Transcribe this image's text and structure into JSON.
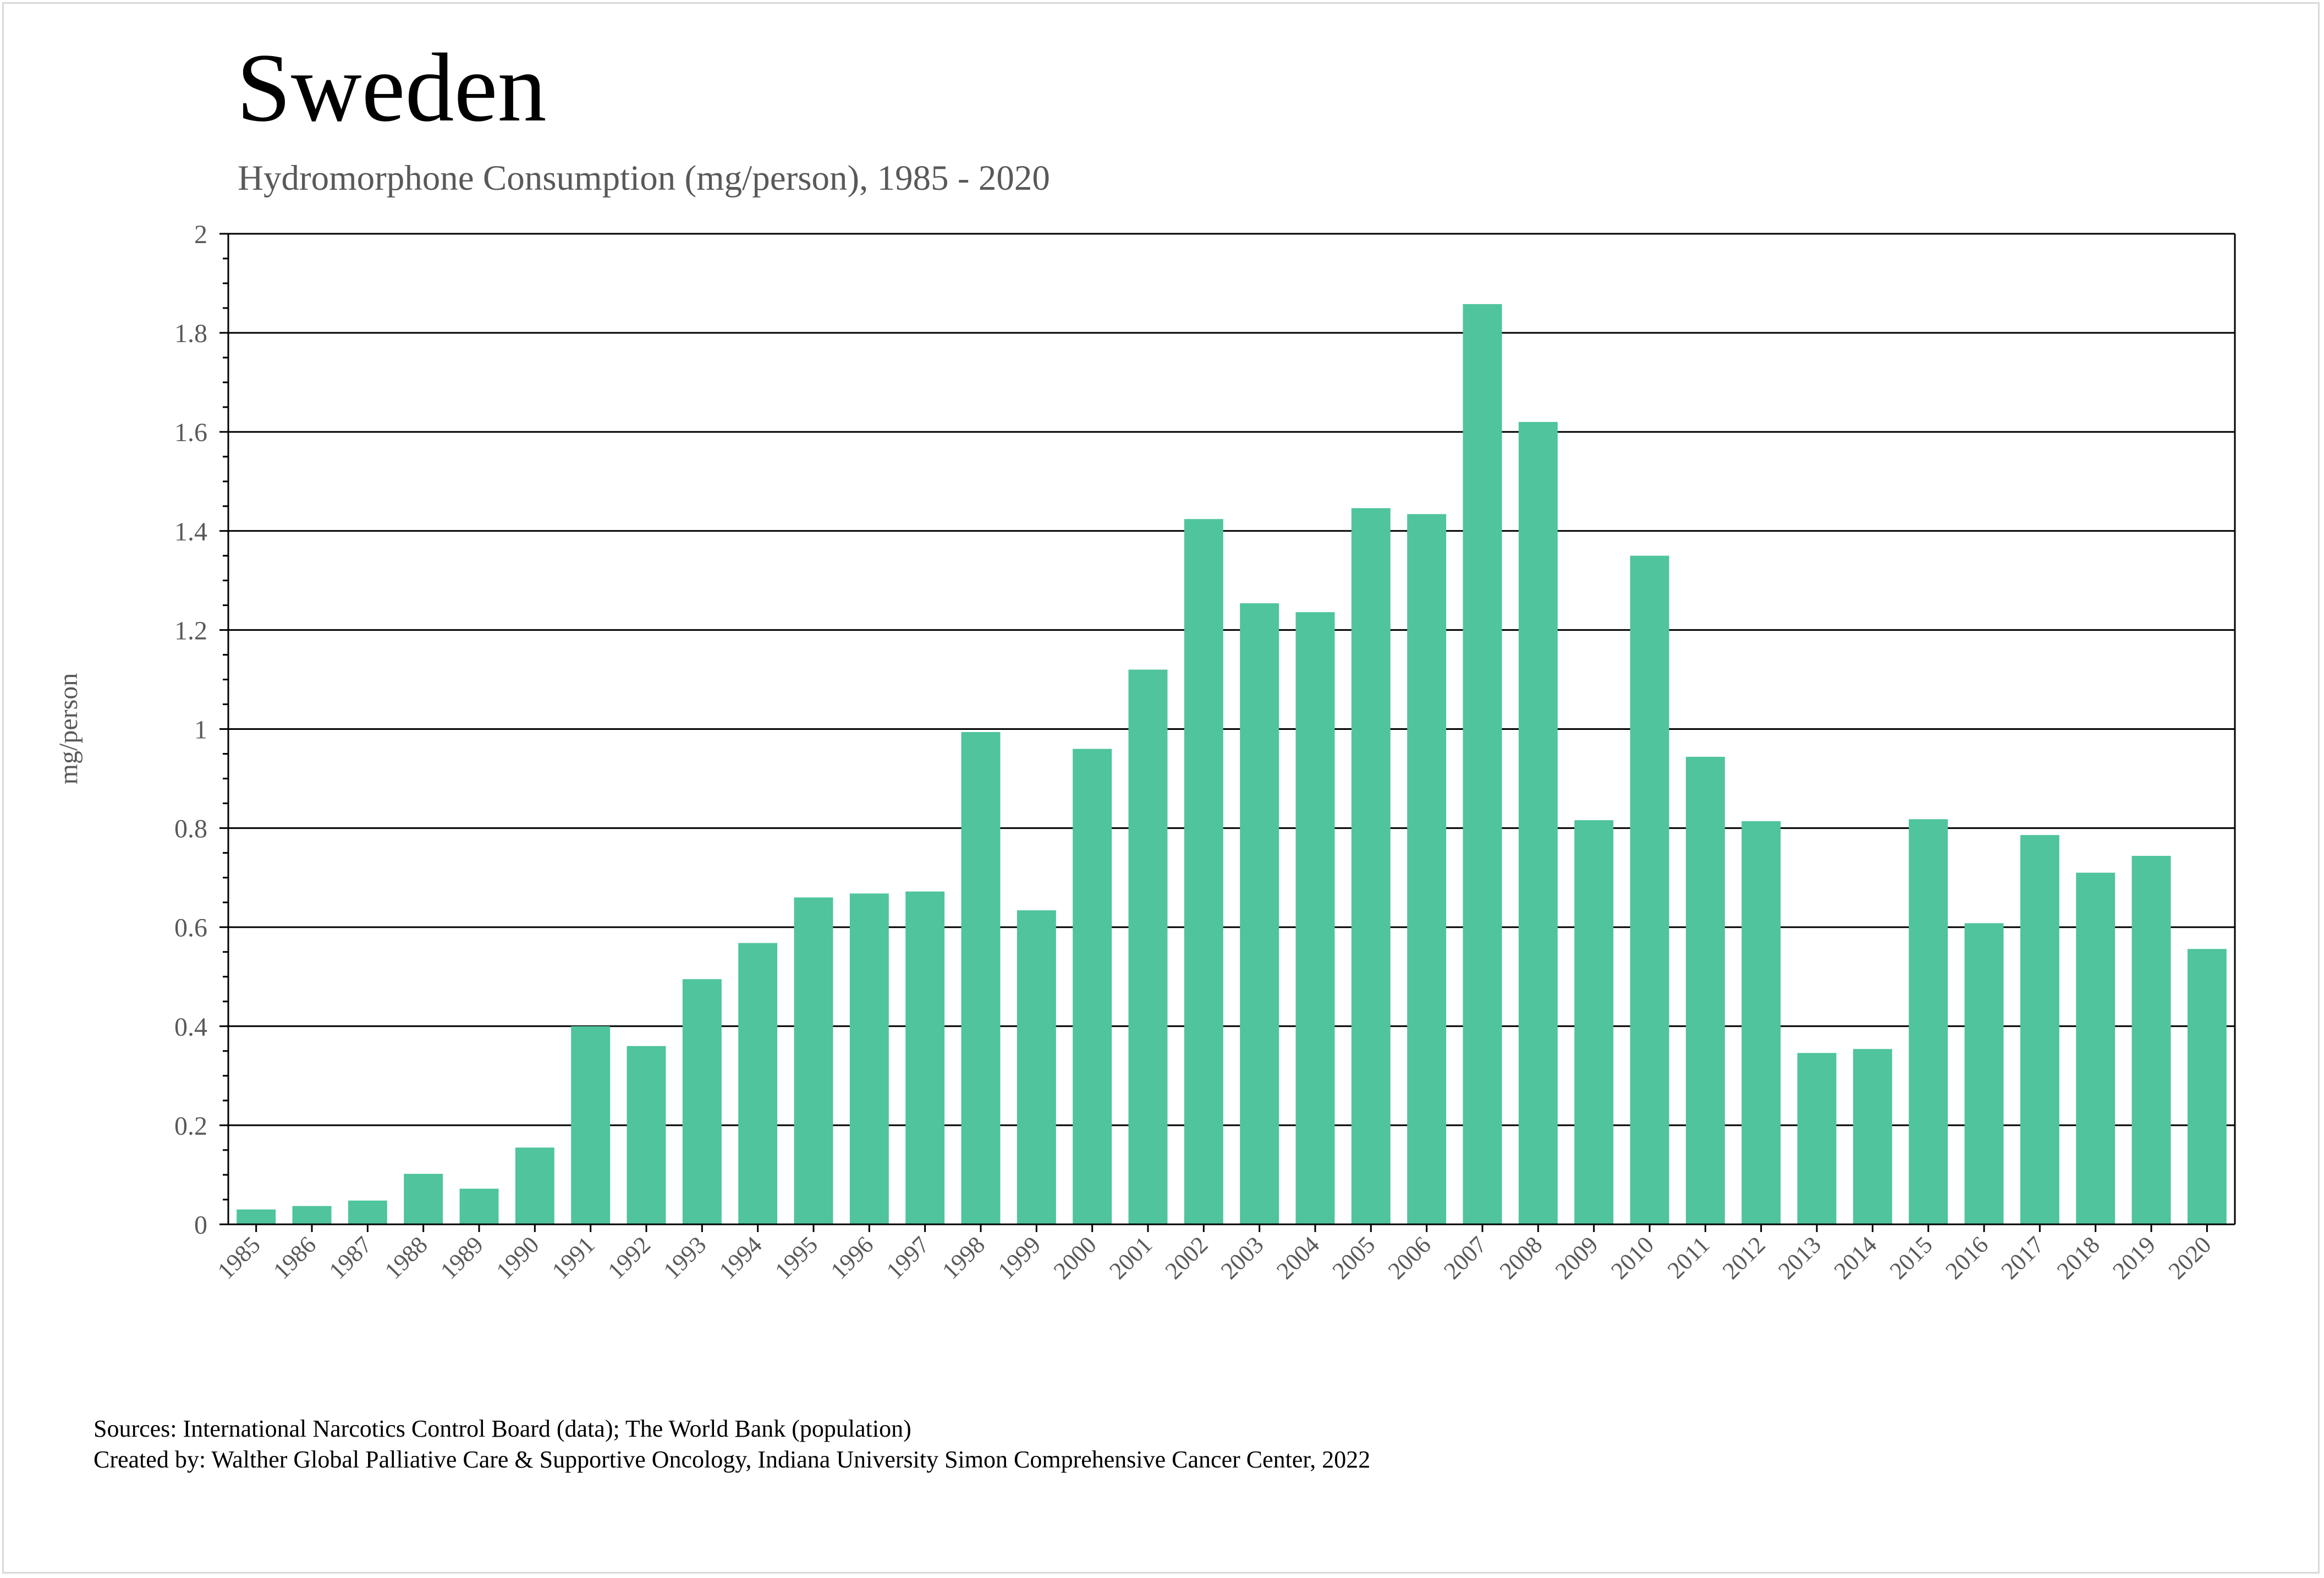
{
  "colors": {
    "bar": "#4fc49d",
    "axis": "#000000",
    "grid": "#000000",
    "text": "#595959"
  },
  "chart_data": {
    "type": "bar",
    "title": "Sweden",
    "subtitle": "Hydromorphone Consumption (mg/person), 1985 - 2020",
    "xlabel": "",
    "ylabel": "mg/person",
    "ylim": [
      0,
      2
    ],
    "yticks": [
      "0",
      "0.2",
      "0.4",
      "0.6",
      "0.8",
      "1",
      "1.2",
      "1.4",
      "1.6",
      "1.8",
      "2"
    ],
    "grid": true,
    "categories": [
      "1985",
      "1986",
      "1987",
      "1988",
      "1989",
      "1990",
      "1991",
      "1992",
      "1993",
      "1994",
      "1995",
      "1996",
      "1997",
      "1998",
      "1999",
      "2000",
      "2001",
      "2002",
      "2003",
      "2004",
      "2005",
      "2006",
      "2007",
      "2008",
      "2009",
      "2010",
      "2011",
      "2012",
      "2013",
      "2014",
      "2015",
      "2016",
      "2017",
      "2018",
      "2019",
      "2020"
    ],
    "values": [
      0.03,
      0.037,
      0.048,
      0.102,
      0.072,
      0.155,
      0.4,
      0.36,
      0.495,
      0.568,
      0.66,
      0.668,
      0.672,
      0.994,
      0.634,
      0.96,
      1.12,
      1.424,
      1.254,
      1.236,
      1.446,
      1.434,
      1.858,
      1.62,
      0.816,
      1.35,
      0.944,
      0.814,
      0.346,
      0.354,
      0.818,
      0.608,
      0.786,
      0.71,
      0.744,
      0.556
    ]
  },
  "footer": {
    "sources": "Sources: International Narcotics Control Board (data); The World Bank (population)",
    "created_by": "Created by: Walther Global Palliative Care & Supportive Oncology, Indiana University Simon Comprehensive Cancer Center, 2022"
  }
}
